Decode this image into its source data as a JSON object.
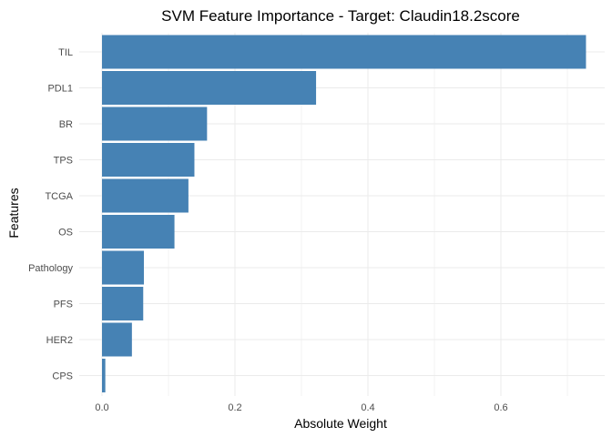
{
  "chart_data": {
    "type": "bar",
    "orientation": "horizontal",
    "title": "SVM Feature Importance - Target: Claudin18.2score",
    "xlabel": "Absolute Weight",
    "ylabel": "Features",
    "categories": [
      "TIL",
      "PDL1",
      "BR",
      "TPS",
      "TCGA",
      "OS",
      "Pathology",
      "PFS",
      "HER2",
      "CPS"
    ],
    "values": [
      0.728,
      0.322,
      0.158,
      0.139,
      0.13,
      0.109,
      0.063,
      0.062,
      0.045,
      0.005
    ],
    "xlim": [
      0,
      0.728
    ],
    "xticks": [
      0.0,
      0.2,
      0.4,
      0.6
    ],
    "xtick_labels": [
      "0.0",
      "0.2",
      "0.4",
      "0.6"
    ],
    "grid": true,
    "bar_color": "#4682B4",
    "grid_color": "#ebebeb"
  }
}
